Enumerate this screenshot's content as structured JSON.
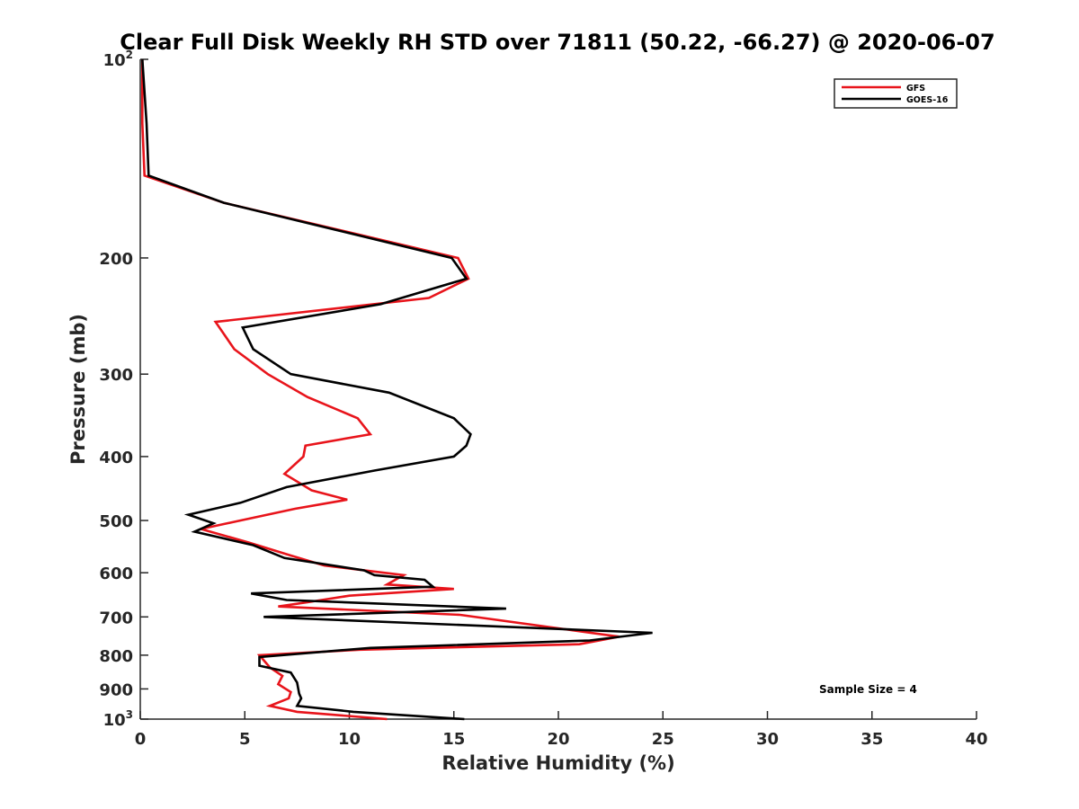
{
  "chart_data": {
    "type": "line",
    "title": "Clear Full Disk Weekly RH STD over 71811 (50.22, -66.27) @ 2020-06-07",
    "xlabel": "Relative Humidity (%)",
    "ylabel": "Pressure (mb)",
    "xlim": [
      0,
      40
    ],
    "ylim": [
      100,
      1000
    ],
    "y_scale": "log",
    "y_reversed": true,
    "grid": false,
    "legend_position": "top-right",
    "annotation": "Sample Size = 4",
    "x_ticks": [
      {
        "value": 0,
        "label": "0"
      },
      {
        "value": 5,
        "label": "5"
      },
      {
        "value": 10,
        "label": "10"
      },
      {
        "value": 15,
        "label": "15"
      },
      {
        "value": 20,
        "label": "20"
      },
      {
        "value": 25,
        "label": "25"
      },
      {
        "value": 30,
        "label": "30"
      },
      {
        "value": 35,
        "label": "35"
      },
      {
        "value": 40,
        "label": "40"
      }
    ],
    "y_ticks": [
      {
        "value": 100,
        "label": "10",
        "sup": "2"
      },
      {
        "value": 200,
        "label": "200",
        "sup": ""
      },
      {
        "value": 300,
        "label": "300",
        "sup": ""
      },
      {
        "value": 400,
        "label": "400",
        "sup": ""
      },
      {
        "value": 500,
        "label": "500",
        "sup": ""
      },
      {
        "value": 600,
        "label": "600",
        "sup": ""
      },
      {
        "value": 700,
        "label": "700",
        "sup": ""
      },
      {
        "value": 800,
        "label": "800",
        "sup": ""
      },
      {
        "value": 900,
        "label": "900",
        "sup": ""
      },
      {
        "value": 1000,
        "label": "10",
        "sup": "3"
      }
    ],
    "series": [
      {
        "name": "GFS",
        "color": "#e8141b",
        "points": [
          [
            0.1,
            100
          ],
          [
            0.1,
            125
          ],
          [
            0.2,
            150
          ],
          [
            4.0,
            165
          ],
          [
            15.2,
            200
          ],
          [
            15.7,
            215
          ],
          [
            13.8,
            230
          ],
          [
            3.6,
            250
          ],
          [
            4.5,
            275
          ],
          [
            6.1,
            300
          ],
          [
            8.0,
            325
          ],
          [
            10.4,
            350
          ],
          [
            11.0,
            370
          ],
          [
            7.9,
            385
          ],
          [
            7.8,
            400
          ],
          [
            6.9,
            425
          ],
          [
            8.2,
            450
          ],
          [
            9.9,
            465
          ],
          [
            7.4,
            480
          ],
          [
            4.8,
            500
          ],
          [
            2.9,
            515
          ],
          [
            5.2,
            540
          ],
          [
            7.2,
            565
          ],
          [
            8.8,
            585
          ],
          [
            12.6,
            605
          ],
          [
            11.8,
            625
          ],
          [
            15.0,
            635
          ],
          [
            10.0,
            650
          ],
          [
            8.0,
            665
          ],
          [
            6.6,
            675
          ],
          [
            15.3,
            695
          ],
          [
            22.9,
            750
          ],
          [
            21.0,
            770
          ],
          [
            10.5,
            785
          ],
          [
            5.7,
            800
          ],
          [
            6.2,
            835
          ],
          [
            6.8,
            860
          ],
          [
            6.6,
            885
          ],
          [
            7.2,
            910
          ],
          [
            7.1,
            930
          ],
          [
            6.2,
            955
          ],
          [
            7.5,
            975
          ],
          [
            11.8,
            1000
          ]
        ]
      },
      {
        "name": "GOES-16",
        "color": "#000000",
        "points": [
          [
            0.1,
            100
          ],
          [
            0.3,
            125
          ],
          [
            0.4,
            150
          ],
          [
            4.0,
            165
          ],
          [
            14.9,
            200
          ],
          [
            15.6,
            215
          ],
          [
            11.5,
            235
          ],
          [
            4.9,
            255
          ],
          [
            5.4,
            275
          ],
          [
            7.2,
            300
          ],
          [
            11.9,
            320
          ],
          [
            15.0,
            350
          ],
          [
            15.8,
            370
          ],
          [
            15.6,
            385
          ],
          [
            15.0,
            400
          ],
          [
            11.2,
            420
          ],
          [
            7.0,
            445
          ],
          [
            4.8,
            470
          ],
          [
            2.3,
            490
          ],
          [
            3.5,
            505
          ],
          [
            2.6,
            520
          ],
          [
            5.4,
            545
          ],
          [
            6.9,
            570
          ],
          [
            10.7,
            595
          ],
          [
            11.2,
            605
          ],
          [
            13.6,
            615
          ],
          [
            14.0,
            630
          ],
          [
            5.3,
            645
          ],
          [
            7.0,
            660
          ],
          [
            17.5,
            680
          ],
          [
            5.9,
            700
          ],
          [
            24.5,
            740
          ],
          [
            21.5,
            760
          ],
          [
            11.0,
            780
          ],
          [
            5.7,
            805
          ],
          [
            5.7,
            830
          ],
          [
            7.2,
            850
          ],
          [
            7.5,
            880
          ],
          [
            7.6,
            915
          ],
          [
            7.7,
            930
          ],
          [
            7.5,
            955
          ],
          [
            10.2,
            975
          ],
          [
            15.5,
            1000
          ]
        ]
      }
    ]
  }
}
